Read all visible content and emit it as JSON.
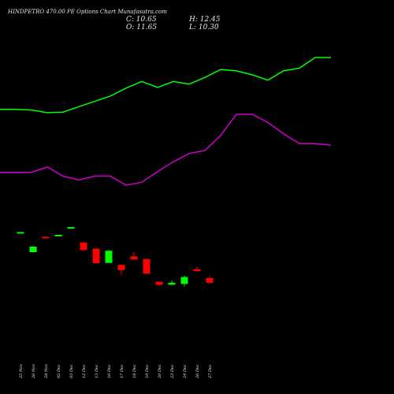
{
  "header": {
    "title": "HINDPETRO 470.00 PE Options Chart Munafasutra.com",
    "close_label": "C: 10.65",
    "open_label": "O: 11.65",
    "high_label": "H: 12.45",
    "low_label": "L: 10.30"
  },
  "colors": {
    "background": "#000000",
    "up": "#00ff00",
    "down": "#ff0000",
    "line_upper": "#00ff00",
    "line_lower": "#cc00cc",
    "text": "#e8e8e8"
  },
  "chart_data": {
    "type": "candlestick",
    "categories": [
      "25 Nov",
      "26 Nov",
      "28 Nov",
      "02 Dec",
      "03 Dec",
      "12 Dec",
      "13 Dec",
      "16 Dec",
      "17 Dec",
      "18 Dec",
      "19 Dec",
      "20 Dec",
      "23 Dec",
      "24 Dec",
      "26 Dec",
      "27 Dec"
    ],
    "candles": [
      {
        "open": 47.0,
        "close": 47.3,
        "high": 47.3,
        "low": 47.0
      },
      {
        "open": 40.0,
        "close": 42.0,
        "high": 42.2,
        "low": 39.9
      },
      {
        "open": 45.6,
        "close": 45.4,
        "high": 45.6,
        "low": 45.3
      },
      {
        "open": 45.8,
        "close": 46.3,
        "high": 46.3,
        "low": 45.8
      },
      {
        "open": 48.9,
        "close": 49.1,
        "high": 49.1,
        "low": 48.9
      },
      {
        "open": 43.5,
        "close": 40.8,
        "high": 43.5,
        "low": 40.3
      },
      {
        "open": 41.3,
        "close": 36.0,
        "high": 41.3,
        "low": 36.0
      },
      {
        "open": 36.1,
        "close": 40.5,
        "high": 40.8,
        "low": 36.1
      },
      {
        "open": 35.4,
        "close": 33.5,
        "high": 35.4,
        "low": 31.8
      },
      {
        "open": 38.5,
        "close": 37.4,
        "high": 40.1,
        "low": 37.4
      },
      {
        "open": 37.5,
        "close": 32.2,
        "high": 37.5,
        "low": 32.2
      },
      {
        "open": 29.3,
        "close": 28.2,
        "high": 29.3,
        "low": 27.8
      },
      {
        "open": 28.2,
        "close": 28.9,
        "high": 29.7,
        "low": 28.2
      },
      {
        "open": 28.5,
        "close": 31.0,
        "high": 31.5,
        "low": 27.6
      },
      {
        "open": 33.8,
        "close": 33.1,
        "high": 34.6,
        "low": 33.1
      },
      {
        "open": 30.6,
        "close": 28.9,
        "high": 31.5,
        "low": 28.6
      }
    ],
    "line_upper": [
      74,
      74,
      75,
      79,
      78,
      70,
      62,
      54,
      42,
      32,
      41,
      32,
      36,
      26,
      14,
      16,
      22,
      30,
      16,
      12,
      -4,
      -4
    ],
    "line_lower": [
      221,
      221,
      221,
      214,
      226,
      231,
      226,
      226,
      238,
      234,
      220,
      207,
      196,
      192,
      172,
      144,
      144,
      155,
      170,
      183,
      183,
      185
    ],
    "ylim": [
      20,
      60
    ]
  }
}
